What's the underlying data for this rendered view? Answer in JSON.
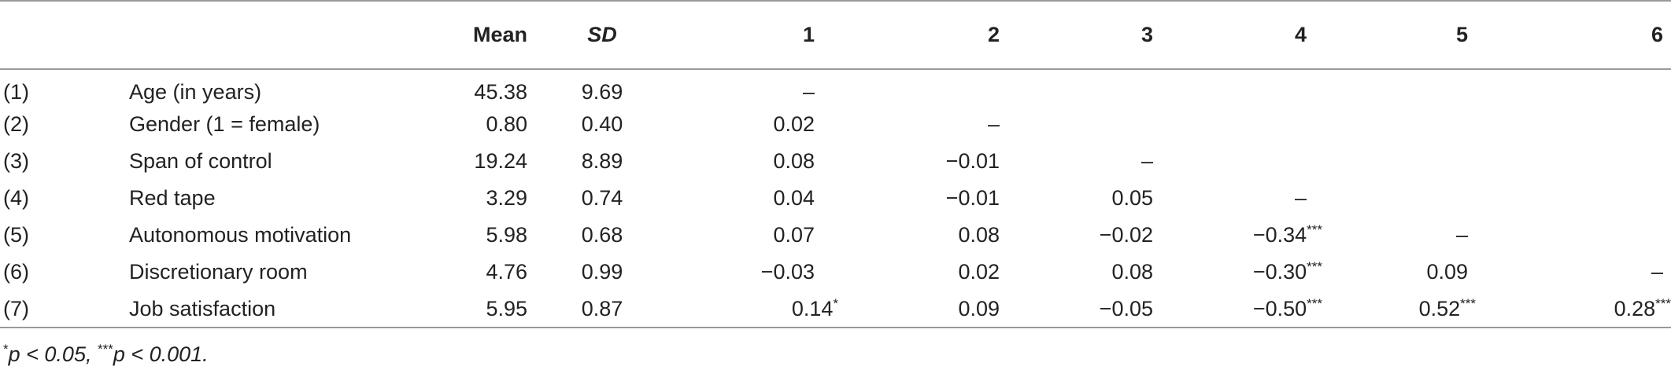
{
  "headers": {
    "mean": "Mean",
    "sd": "SD",
    "c1": "1",
    "c2": "2",
    "c3": "3",
    "c4": "4",
    "c5": "5",
    "c6": "6"
  },
  "rows": [
    {
      "num": "(1)",
      "var": "Age (in years)",
      "mean": "45.38",
      "sd": "9.69",
      "c1": "–",
      "c1_sup": "",
      "c2": "",
      "c2_sup": "",
      "c3": "",
      "c3_sup": "",
      "c4": "",
      "c4_sup": "",
      "c5": "",
      "c5_sup": "",
      "c6": "",
      "c6_sup": ""
    },
    {
      "num": "(2)",
      "var": "Gender (1 = female)",
      "mean": "0.80",
      "sd": "0.40",
      "c1": "0.02",
      "c1_sup": "",
      "c2": "–",
      "c2_sup": "",
      "c3": "",
      "c3_sup": "",
      "c4": "",
      "c4_sup": "",
      "c5": "",
      "c5_sup": "",
      "c6": "",
      "c6_sup": ""
    },
    {
      "num": "(3)",
      "var": "Span of control",
      "mean": "19.24",
      "sd": "8.89",
      "c1": "0.08",
      "c1_sup": "",
      "c2": "−0.01",
      "c2_sup": "",
      "c3": "–",
      "c3_sup": "",
      "c4": "",
      "c4_sup": "",
      "c5": "",
      "c5_sup": "",
      "c6": "",
      "c6_sup": ""
    },
    {
      "num": "(4)",
      "var": "Red tape",
      "mean": "3.29",
      "sd": "0.74",
      "c1": "0.04",
      "c1_sup": "",
      "c2": "−0.01",
      "c2_sup": "",
      "c3": "0.05",
      "c3_sup": "",
      "c4": "–",
      "c4_sup": "",
      "c5": "",
      "c5_sup": "",
      "c6": "",
      "c6_sup": ""
    },
    {
      "num": "(5)",
      "var": "Autonomous motivation",
      "mean": "5.98",
      "sd": "0.68",
      "c1": "0.07",
      "c1_sup": "",
      "c2": "0.08",
      "c2_sup": "",
      "c3": "−0.02",
      "c3_sup": "",
      "c4": "−0.34",
      "c4_sup": "***",
      "c5": "–",
      "c5_sup": "",
      "c6": "",
      "c6_sup": ""
    },
    {
      "num": "(6)",
      "var": "Discretionary room",
      "mean": "4.76",
      "sd": "0.99",
      "c1": "−0.03",
      "c1_sup": "",
      "c2": "0.02",
      "c2_sup": "",
      "c3": "0.08",
      "c3_sup": "",
      "c4": "−0.30",
      "c4_sup": "***",
      "c5": "0.09",
      "c5_sup": "",
      "c6": "–",
      "c6_sup": ""
    },
    {
      "num": "(7)",
      "var": "Job satisfaction",
      "mean": "5.95",
      "sd": "0.87",
      "c1": "0.14",
      "c1_sup": "*",
      "c2": "0.09",
      "c2_sup": "",
      "c3": "−0.05",
      "c3_sup": "",
      "c4": "−0.50",
      "c4_sup": "***",
      "c5": "0.52",
      "c5_sup": "***",
      "c6": "0.28",
      "c6_sup": "***"
    }
  ],
  "note": {
    "sup1": "*",
    "text1": "p < 0.05, ",
    "sup2": "***",
    "text2": "p < 0.001."
  }
}
